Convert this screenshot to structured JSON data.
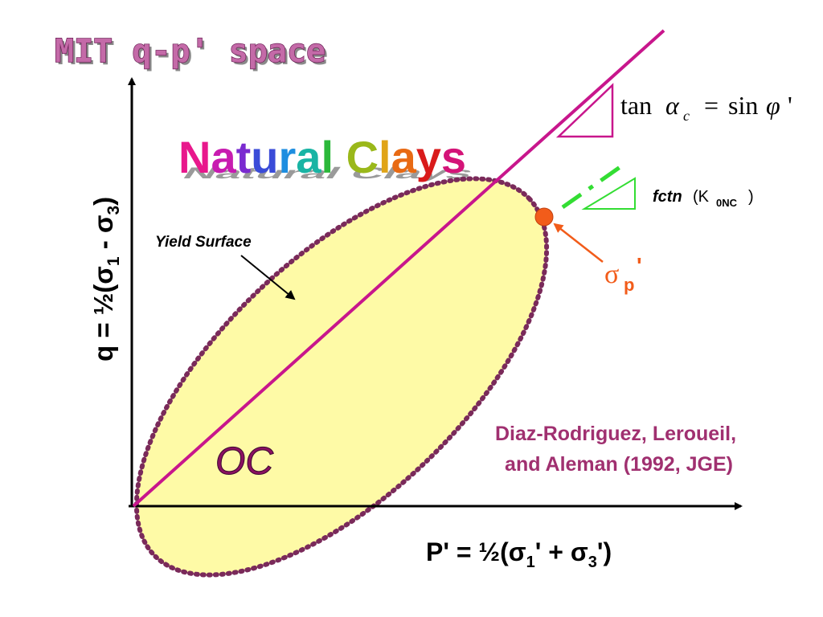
{
  "title": "MIT q-p' space",
  "subtitle": "Natural Clays",
  "subtitle_colors": [
    "#e8188c",
    "#c81bb0",
    "#7a2ad0",
    "#3a4bd8",
    "#1e8ee0",
    "#19b4a4",
    "#2bb83a",
    "#9ab81a",
    "#e0a418",
    "#e86a14",
    "#d91b1b",
    "#d41478",
    "#9a2ad0"
  ],
  "labels": {
    "yield_surface": "Yield Surface",
    "oc": "OC",
    "sigma_p": "σ",
    "sigma_p_sub": "p",
    "sigma_p_prime": "'",
    "fctn": "fctn",
    "fctn_arg": "(K",
    "fctn_sub": "0NC",
    "fctn_close": ")"
  },
  "equation": {
    "tan": "tan",
    "alpha": "α",
    "alpha_sub": "c",
    "equals": "=",
    "sin": "sin",
    "phi": "φ",
    "prime": "'"
  },
  "y_axis_label": {
    "q": "q  =  ½(σ",
    "s1": "1",
    "mid": " - σ",
    "s3": "3",
    "close": ")"
  },
  "x_axis_label": {
    "p": "P' = ½(σ",
    "s1": "1",
    "mid": "' + σ",
    "s3": "3",
    "close": "')"
  },
  "citation": {
    "line1": "Diaz-Rodriguez, Leroueil,",
    "line2": "and Aleman (1992, JGE)"
  },
  "colors": {
    "failure_line": "#c8168c",
    "ellipse_fill": "#fefaa6",
    "ellipse_border": "#7a2a5a",
    "sigma_p_point": "#f25c1a",
    "k0_line": "#33dd33",
    "citation": "#a03070",
    "oc": "#8a1060"
  }
}
